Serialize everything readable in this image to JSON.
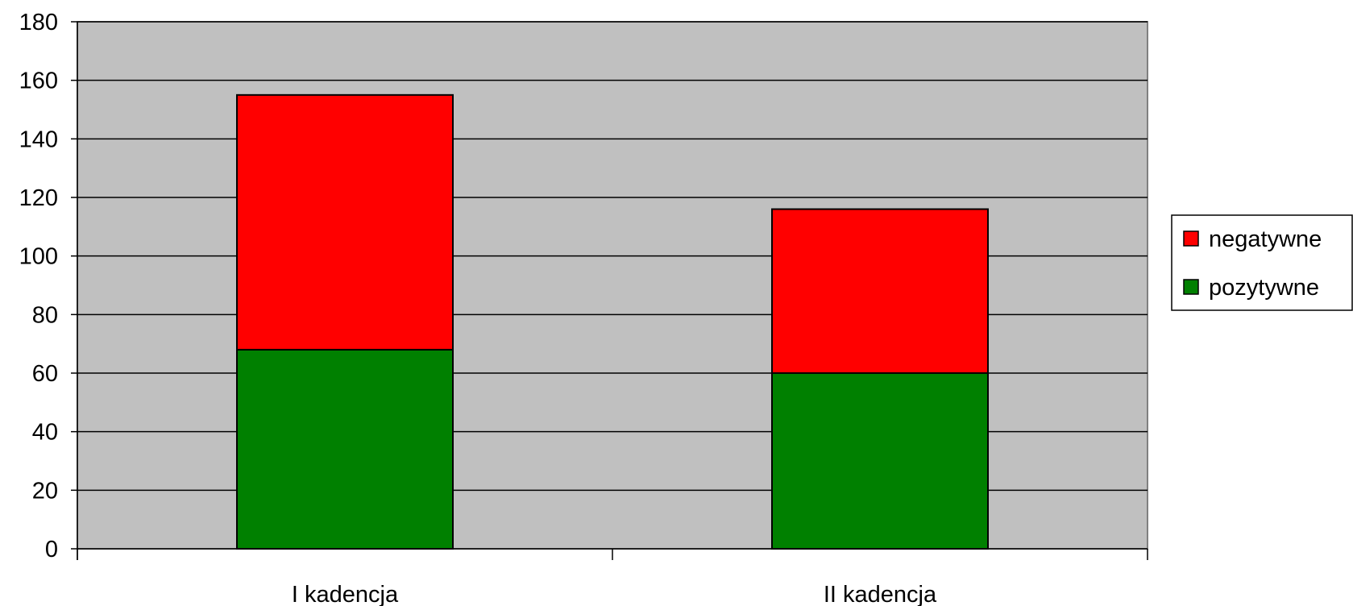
{
  "chart_data": {
    "type": "bar",
    "stacked": true,
    "categories": [
      "I kadencja",
      "II kadencja"
    ],
    "series": [
      {
        "name": "pozytywne",
        "values": [
          68,
          60
        ],
        "color": "#008000"
      },
      {
        "name": "negatywne",
        "values": [
          87,
          56
        ],
        "color": "#FF0000"
      }
    ],
    "ylim": [
      0,
      180
    ],
    "yticks": [
      "0",
      "20",
      "40",
      "60",
      "80",
      "100",
      "120",
      "140",
      "160",
      "180"
    ],
    "grid": true,
    "legend_position": "right",
    "plot_background": "#C0C0C0"
  }
}
